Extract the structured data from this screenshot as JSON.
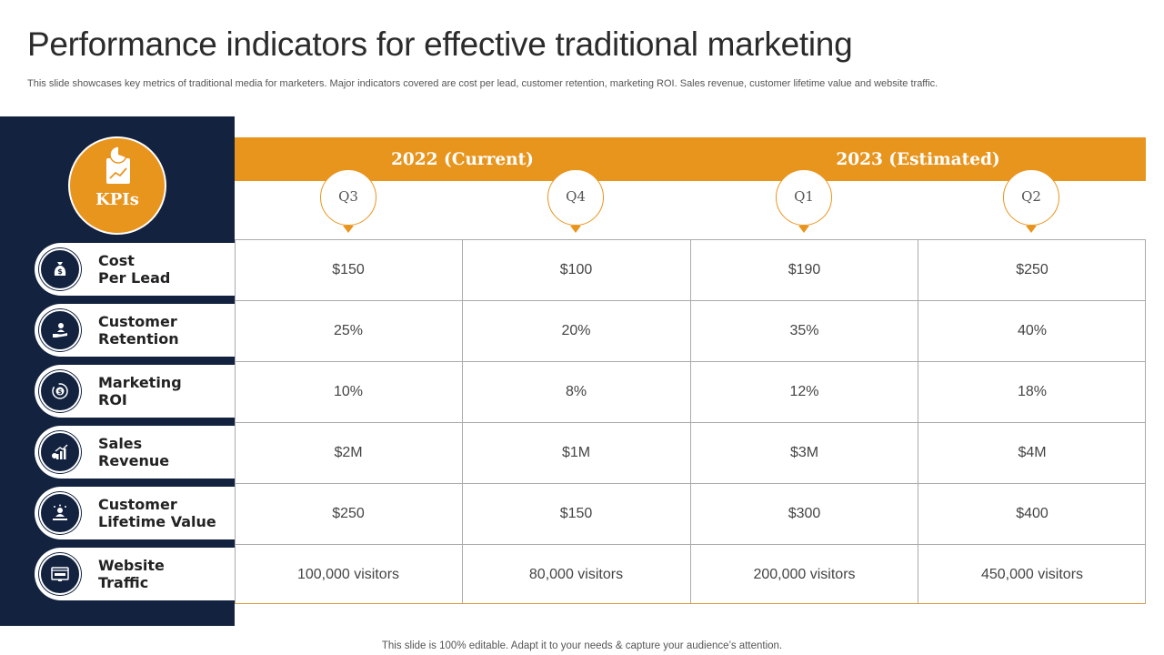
{
  "title": "Performance indicators for effective traditional marketing",
  "subtitle": "This slide showcases key metrics of traditional media for marketers. Major indicators covered are cost per lead, customer retention, marketing ROI. Sales revenue, customer lifetime value and website traffic.",
  "footer": "This slide is 100% editable. Adapt it to your needs & capture your audience’s attention.",
  "colors": {
    "accent": "#e8951e",
    "navy": "#13223f"
  },
  "kpi_header": "KPIs",
  "years": [
    "2022 (Current)",
    "2023 (Estimated)"
  ],
  "quarters": [
    "Q3",
    "Q4",
    "Q1",
    "Q2"
  ],
  "kpis": [
    {
      "line1": "Cost",
      "line2": "Per Lead",
      "icon": "money-bag-icon",
      "values": [
        "$150",
        "$100",
        "$190",
        "$250"
      ]
    },
    {
      "line1": "Customer",
      "line2": "Retention",
      "icon": "hand-person-icon",
      "values": [
        "25%",
        "20%",
        "35%",
        "40%"
      ]
    },
    {
      "line1": "Marketing",
      "line2": "ROI",
      "icon": "coin-cycle-icon",
      "values": [
        "10%",
        "8%",
        "12%",
        "18%"
      ]
    },
    {
      "line1": "Sales",
      "line2": "Revenue",
      "icon": "growth-chart-icon",
      "values": [
        "$2M",
        "$1M",
        "$3M",
        "$4M"
      ]
    },
    {
      "line1": "Customer",
      "line2": "Lifetime Value",
      "icon": "customer-value-icon",
      "values": [
        "$250",
        "$150",
        "$300",
        "$400"
      ]
    },
    {
      "line1": "Website",
      "line2": "Traffic",
      "icon": "web-browser-icon",
      "values": [
        "100,000 visitors",
        "80,000 visitors",
        "200,000 visitors",
        "450,000 visitors"
      ]
    }
  ]
}
